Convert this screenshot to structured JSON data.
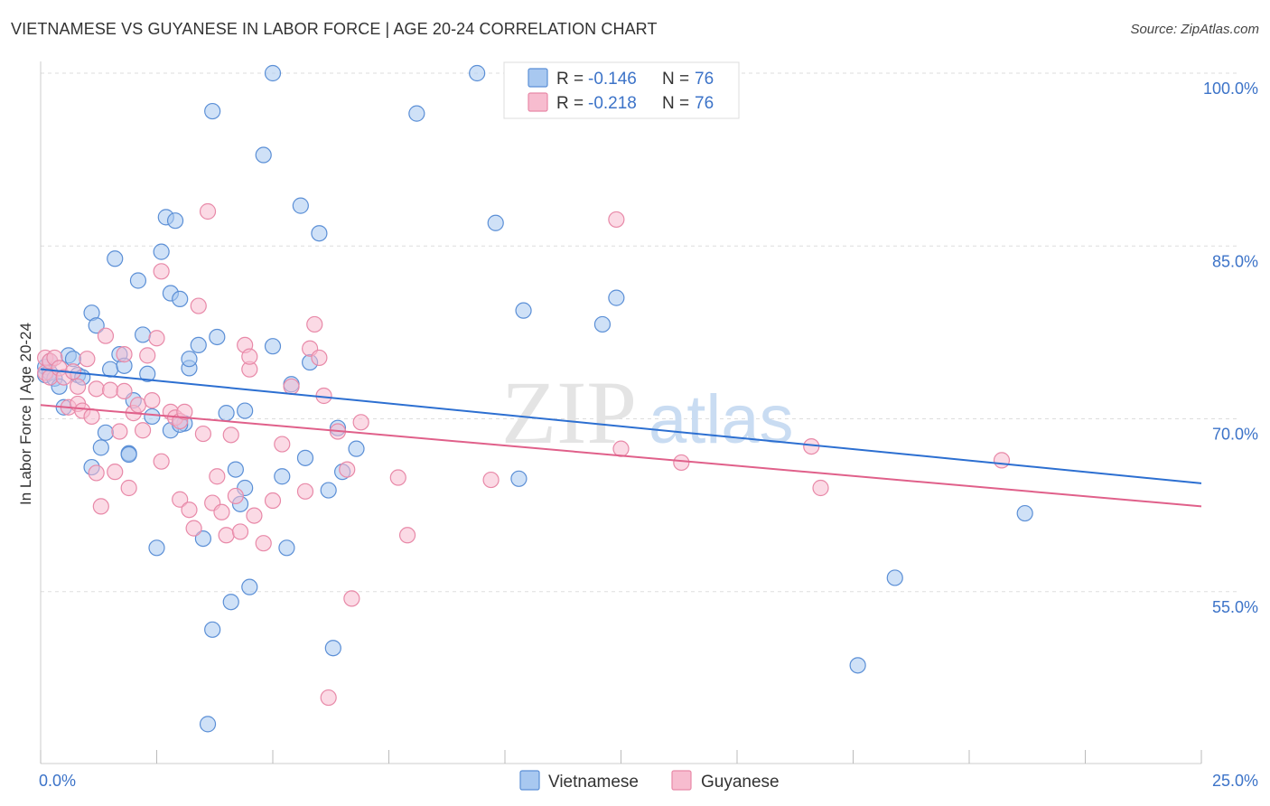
{
  "title": "VIETNAMESE VS GUYANESE IN LABOR FORCE | AGE 20-24 CORRELATION CHART",
  "source": "Source: ZipAtlas.com",
  "watermark": {
    "zip": "ZIP",
    "atlas": "atlas"
  },
  "colors": {
    "vietnamese_fill": "#a8c8f0",
    "vietnamese_stroke": "#5b8fd6",
    "vietnamese_line": "#2c6fd1",
    "guyanese_fill": "#f7bccf",
    "guyanese_stroke": "#e889a8",
    "guyanese_line": "#e0608a",
    "axis_label": "#3c73c8",
    "grid": "#dddddd"
  },
  "legend": {
    "rows": [
      {
        "r_label": "R =",
        "r_value": "-0.146",
        "n_label": "N =",
        "n_value": "76"
      },
      {
        "r_label": "R =",
        "r_value": "-0.218",
        "n_label": "N =",
        "n_value": "76"
      }
    ]
  },
  "chart_data": {
    "type": "scatter",
    "xlabel": "",
    "ylabel": "In Labor Force | Age 20-24",
    "xlim": [
      0,
      25
    ],
    "ylim": [
      42,
      102
    ],
    "x_tick_labels": [
      {
        "value": 0,
        "label": "0.0%"
      },
      {
        "value": 25,
        "label": "25.0%"
      }
    ],
    "y_tick_labels": [
      {
        "value": 100,
        "label": "100.0%"
      },
      {
        "value": 85,
        "label": "85.0%"
      },
      {
        "value": 70,
        "label": "70.0%"
      },
      {
        "value": 55,
        "label": "55.0%"
      }
    ],
    "series": [
      {
        "name": "Vietnamese",
        "trend": {
          "x": [
            0,
            25
          ],
          "y": [
            74.3,
            64.4
          ]
        },
        "points": [
          [
            0.1,
            74.5
          ],
          [
            0.1,
            73.8
          ],
          [
            0.2,
            75.0
          ],
          [
            0.2,
            74.0
          ],
          [
            0.3,
            73.5
          ],
          [
            0.4,
            72.8
          ],
          [
            0.5,
            71.0
          ],
          [
            0.6,
            75.5
          ],
          [
            0.7,
            75.2
          ],
          [
            0.8,
            73.8
          ],
          [
            0.9,
            73.6
          ],
          [
            1.1,
            65.8
          ],
          [
            1.1,
            79.2
          ],
          [
            1.2,
            78.1
          ],
          [
            1.3,
            67.5
          ],
          [
            1.4,
            68.8
          ],
          [
            1.5,
            74.3
          ],
          [
            1.6,
            83.9
          ],
          [
            1.7,
            75.6
          ],
          [
            1.8,
            74.6
          ],
          [
            1.9,
            67.0
          ],
          [
            1.9,
            66.9
          ],
          [
            2.0,
            71.6
          ],
          [
            2.1,
            82.0
          ],
          [
            2.2,
            77.3
          ],
          [
            2.3,
            73.9
          ],
          [
            2.4,
            70.2
          ],
          [
            2.5,
            58.8
          ],
          [
            2.6,
            84.5
          ],
          [
            2.7,
            87.5
          ],
          [
            2.8,
            69.0
          ],
          [
            2.8,
            80.9
          ],
          [
            2.9,
            87.2
          ],
          [
            3.0,
            80.4
          ],
          [
            3.1,
            69.6
          ],
          [
            3.2,
            74.4
          ],
          [
            3.2,
            75.2
          ],
          [
            3.4,
            76.4
          ],
          [
            3.5,
            59.6
          ],
          [
            3.6,
            43.5
          ],
          [
            3.7,
            96.7
          ],
          [
            3.7,
            51.7
          ],
          [
            3.8,
            77.1
          ],
          [
            4.0,
            70.5
          ],
          [
            4.1,
            54.1
          ],
          [
            4.2,
            65.6
          ],
          [
            4.3,
            62.6
          ],
          [
            4.4,
            64.0
          ],
          [
            4.4,
            70.7
          ],
          [
            4.5,
            55.4
          ],
          [
            4.8,
            92.9
          ],
          [
            5.0,
            100.0
          ],
          [
            5.0,
            76.3
          ],
          [
            5.2,
            65.0
          ],
          [
            5.3,
            58.8
          ],
          [
            5.4,
            73.0
          ],
          [
            5.6,
            88.5
          ],
          [
            5.7,
            66.6
          ],
          [
            5.8,
            74.9
          ],
          [
            6.0,
            86.1
          ],
          [
            6.2,
            63.8
          ],
          [
            6.3,
            50.1
          ],
          [
            6.4,
            69.2
          ],
          [
            6.5,
            65.4
          ],
          [
            6.8,
            67.4
          ],
          [
            8.1,
            96.5
          ],
          [
            9.4,
            100.0
          ],
          [
            9.8,
            87.0
          ],
          [
            10.3,
            64.8
          ],
          [
            10.4,
            79.4
          ],
          [
            12.1,
            78.2
          ],
          [
            12.4,
            80.5
          ],
          [
            17.6,
            48.6
          ],
          [
            18.4,
            56.2
          ],
          [
            21.2,
            61.8
          ],
          [
            3.0,
            69.5
          ]
        ]
      },
      {
        "name": "Guyanese",
        "trend": {
          "x": [
            0,
            25
          ],
          "y": [
            71.2,
            62.4
          ]
        },
        "points": [
          [
            0.1,
            75.3
          ],
          [
            0.1,
            74.0
          ],
          [
            0.2,
            75.0
          ],
          [
            0.2,
            73.6
          ],
          [
            0.3,
            75.3
          ],
          [
            0.4,
            74.4
          ],
          [
            0.5,
            73.6
          ],
          [
            0.6,
            71.0
          ],
          [
            0.7,
            74.1
          ],
          [
            0.8,
            72.8
          ],
          [
            0.8,
            71.3
          ],
          [
            0.9,
            70.7
          ],
          [
            1.0,
            75.2
          ],
          [
            1.1,
            70.2
          ],
          [
            1.2,
            72.6
          ],
          [
            1.2,
            65.3
          ],
          [
            1.3,
            62.4
          ],
          [
            1.4,
            77.2
          ],
          [
            1.5,
            72.5
          ],
          [
            1.6,
            65.4
          ],
          [
            1.7,
            68.9
          ],
          [
            1.8,
            72.4
          ],
          [
            1.8,
            75.6
          ],
          [
            1.9,
            64.0
          ],
          [
            2.0,
            70.5
          ],
          [
            2.1,
            71.2
          ],
          [
            2.2,
            69.0
          ],
          [
            2.3,
            75.5
          ],
          [
            2.4,
            71.6
          ],
          [
            2.5,
            77.0
          ],
          [
            2.6,
            82.8
          ],
          [
            2.6,
            66.3
          ],
          [
            2.8,
            70.6
          ],
          [
            2.9,
            70.1
          ],
          [
            3.0,
            69.8
          ],
          [
            3.0,
            63.0
          ],
          [
            3.1,
            70.6
          ],
          [
            3.2,
            62.1
          ],
          [
            3.3,
            60.5
          ],
          [
            3.4,
            79.8
          ],
          [
            3.5,
            68.7
          ],
          [
            3.6,
            88.0
          ],
          [
            3.7,
            62.7
          ],
          [
            3.8,
            65.0
          ],
          [
            3.9,
            61.9
          ],
          [
            4.0,
            59.9
          ],
          [
            4.1,
            68.6
          ],
          [
            4.2,
            63.3
          ],
          [
            4.3,
            60.2
          ],
          [
            4.4,
            76.4
          ],
          [
            4.5,
            74.3
          ],
          [
            4.5,
            75.4
          ],
          [
            4.6,
            61.6
          ],
          [
            4.8,
            59.2
          ],
          [
            5.0,
            62.9
          ],
          [
            5.2,
            67.8
          ],
          [
            5.4,
            72.8
          ],
          [
            5.7,
            63.7
          ],
          [
            5.8,
            76.1
          ],
          [
            5.9,
            78.2
          ],
          [
            6.0,
            75.3
          ],
          [
            6.1,
            72.0
          ],
          [
            6.2,
            45.8
          ],
          [
            6.4,
            68.9
          ],
          [
            6.6,
            65.6
          ],
          [
            6.7,
            54.4
          ],
          [
            6.9,
            69.7
          ],
          [
            7.7,
            64.9
          ],
          [
            7.9,
            59.9
          ],
          [
            9.7,
            64.7
          ],
          [
            12.4,
            87.3
          ],
          [
            12.5,
            67.4
          ],
          [
            13.8,
            66.2
          ],
          [
            16.6,
            67.6
          ],
          [
            16.8,
            64.0
          ],
          [
            20.7,
            66.4
          ]
        ]
      }
    ]
  },
  "bottom_legend": [
    {
      "label": "Vietnamese"
    },
    {
      "label": "Guyanese"
    }
  ]
}
